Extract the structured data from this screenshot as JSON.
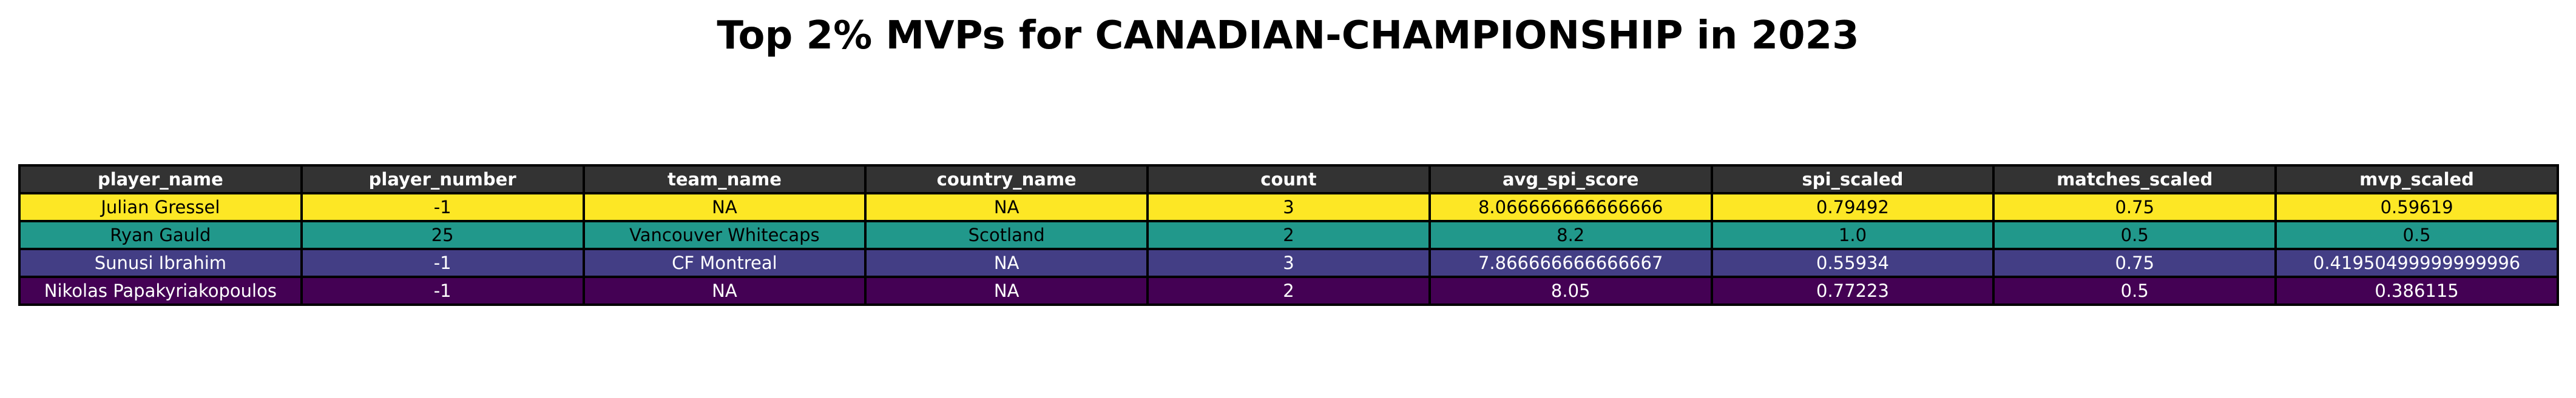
{
  "chart_data": {
    "type": "table",
    "title": "Top 2% MVPs for CANADIAN-CHAMPIONSHIP in 2023",
    "columns": [
      "player_name",
      "player_number",
      "team_name",
      "country_name",
      "count",
      "avg_spi_score",
      "spi_scaled",
      "matches_scaled",
      "mvp_scaled"
    ],
    "rows": [
      {
        "cells": [
          "Julian Gressel",
          "-1",
          "NA",
          "NA",
          "3",
          "8.066666666666666",
          "0.79492",
          "0.75",
          "0.59619"
        ],
        "bg": "#fde725",
        "fg": "#000000"
      },
      {
        "cells": [
          "Ryan Gauld",
          "25",
          "Vancouver Whitecaps",
          "Scotland",
          "2",
          "8.2",
          "1.0",
          "0.5",
          "0.5"
        ],
        "bg": "#21988b",
        "fg": "#000000"
      },
      {
        "cells": [
          "Sunusi Ibrahim",
          "-1",
          "CF Montreal",
          "NA",
          "3",
          "7.866666666666667",
          "0.55934",
          "0.75",
          "0.41950499999999996"
        ],
        "bg": "#433e85",
        "fg": "#ffffff"
      },
      {
        "cells": [
          "Nikolas Papakyriakopoulos",
          "-1",
          "NA",
          "NA",
          "2",
          "8.05",
          "0.77223",
          "0.5",
          "0.386115"
        ],
        "bg": "#440154",
        "fg": "#ffffff"
      }
    ]
  }
}
